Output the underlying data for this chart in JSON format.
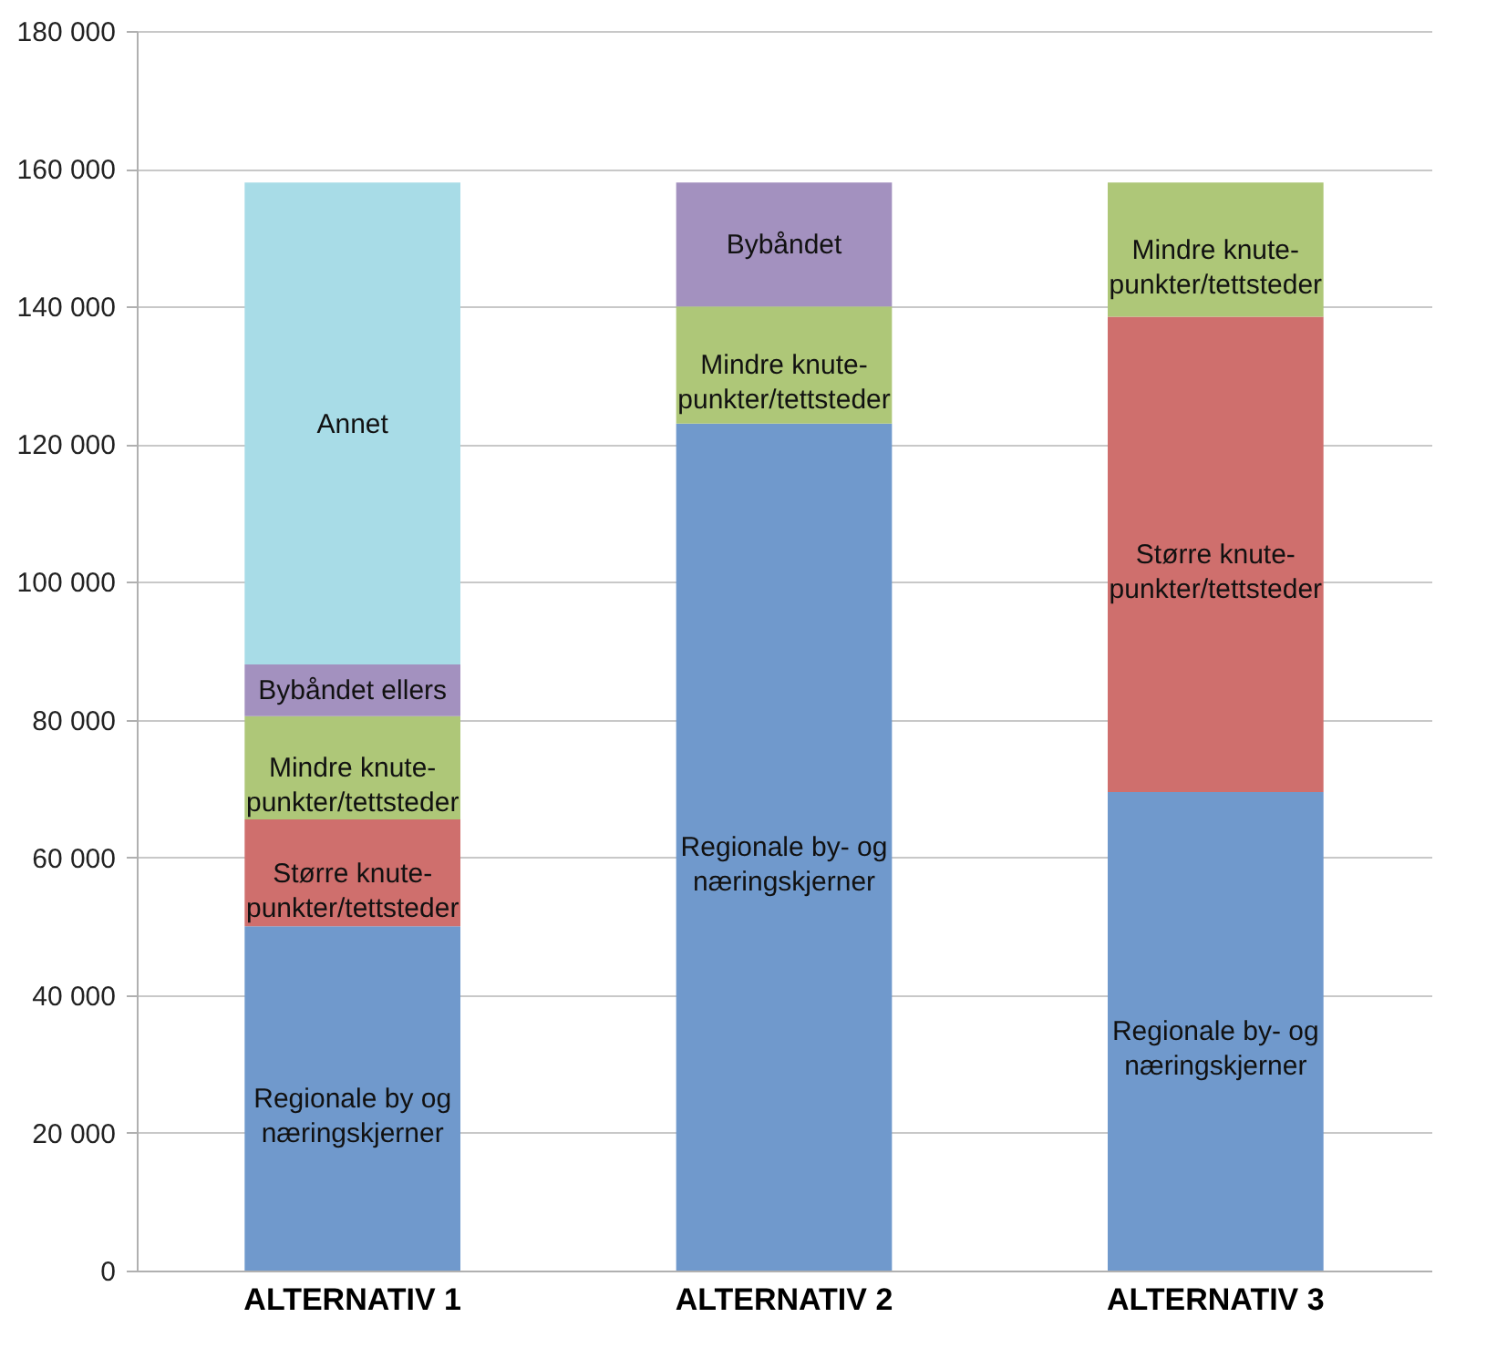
{
  "chart_data": {
    "type": "bar",
    "stacked": true,
    "categories": [
      "ALTERNATIV 1",
      "ALTERNATIV 2",
      "ALTERNATIV 3"
    ],
    "series": [
      {
        "name": "Regionale by og\nnæringskjerner",
        "color": "#7099cc",
        "values": [
          50000,
          null,
          null
        ]
      },
      {
        "name": "Regionale by- og\nnæringskjerner",
        "color": "#7099cc",
        "values": [
          null,
          123000,
          69500
        ]
      },
      {
        "name": "Større knute-\npunkter/tettsteder",
        "color": "#cf6f6d",
        "values": [
          15500,
          null,
          69000
        ]
      },
      {
        "name": "Mindre knute-\npunkter/tettsteder",
        "color": "#aec778",
        "values": [
          15000,
          17000,
          19500
        ]
      },
      {
        "name": "Bybåndet ellers",
        "color": "#a391bf",
        "values": [
          7500,
          null,
          null
        ]
      },
      {
        "name": "Bybåndet",
        "color": "#a391bf",
        "values": [
          null,
          18000,
          null
        ]
      },
      {
        "name": "Annet",
        "color": "#a8dce7",
        "values": [
          70000,
          null,
          null
        ]
      }
    ],
    "ylim": [
      0,
      180000
    ],
    "yticks": [
      {
        "value": 0,
        "label": "0"
      },
      {
        "value": 20000,
        "label": "20 000"
      },
      {
        "value": 40000,
        "label": "40 000"
      },
      {
        "value": 60000,
        "label": "60 000"
      },
      {
        "value": 80000,
        "label": "80 000"
      },
      {
        "value": 100000,
        "label": "100 000"
      },
      {
        "value": 120000,
        "label": "120 000"
      },
      {
        "value": 140000,
        "label": "140 000"
      },
      {
        "value": 160000,
        "label": "160 000"
      },
      {
        "value": 180000,
        "label": "180 000"
      }
    ],
    "grid": "y"
  }
}
